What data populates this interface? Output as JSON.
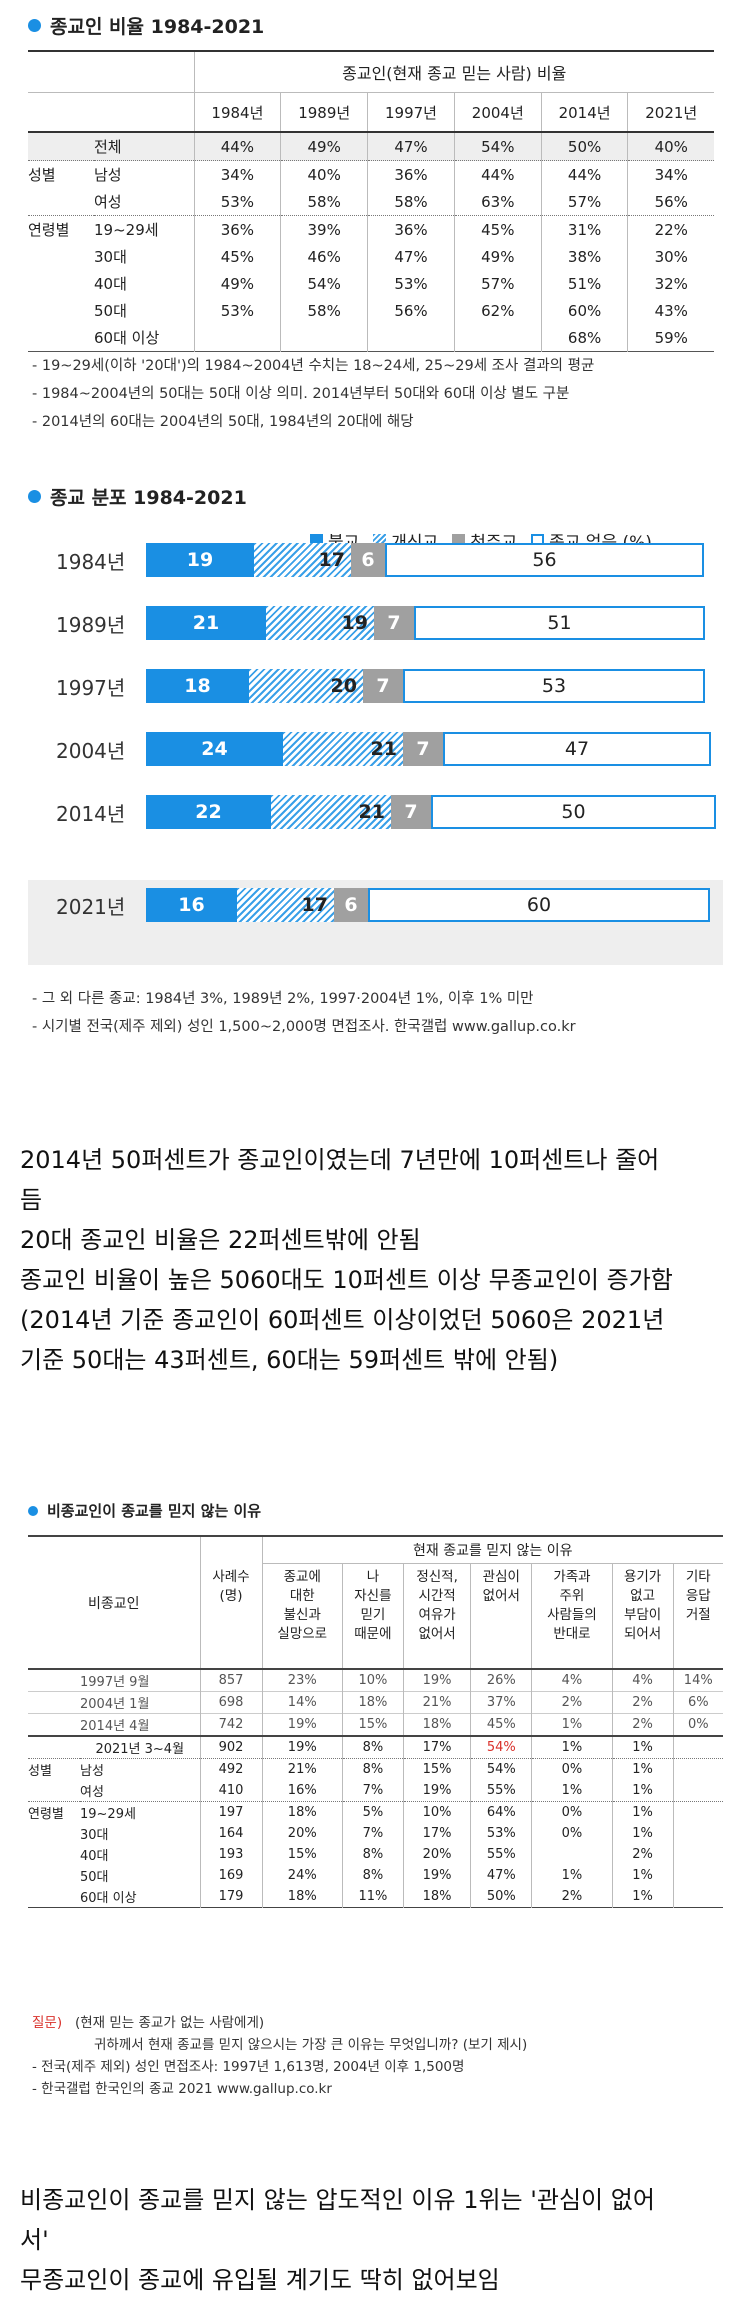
{
  "section1": {
    "title": "종교인 비율 1984-2021",
    "header": "종교인(현재 종교 믿는 사람) 비율",
    "years": [
      "1984년",
      "1989년",
      "1997년",
      "2004년",
      "2014년",
      "2021년"
    ],
    "rows": [
      {
        "group": "",
        "label": "전체",
        "values": [
          "44%",
          "49%",
          "47%",
          "54%",
          "50%",
          "40%"
        ]
      },
      {
        "group": "성별",
        "label": "남성",
        "values": [
          "34%",
          "40%",
          "36%",
          "44%",
          "44%",
          "34%"
        ]
      },
      {
        "group": "",
        "label": "여성",
        "values": [
          "53%",
          "58%",
          "58%",
          "63%",
          "57%",
          "56%"
        ]
      },
      {
        "group": "연령별",
        "label": "19~29세",
        "values": [
          "36%",
          "39%",
          "36%",
          "45%",
          "31%",
          "22%"
        ]
      },
      {
        "group": "",
        "label": "30대",
        "values": [
          "45%",
          "46%",
          "47%",
          "49%",
          "38%",
          "30%"
        ]
      },
      {
        "group": "",
        "label": "40대",
        "values": [
          "49%",
          "54%",
          "53%",
          "57%",
          "51%",
          "32%"
        ]
      },
      {
        "group": "",
        "label": "50대",
        "values": [
          "53%",
          "58%",
          "56%",
          "62%",
          "60%",
          "43%"
        ]
      },
      {
        "group": "",
        "label": "60대 이상",
        "values": [
          "",
          "",
          "",
          "",
          "68%",
          "59%"
        ]
      }
    ],
    "notes": [
      "- 19~29세(이하 '20대')의 1984~2004년 수치는 18~24세, 25~29세 조사 결과의 평균",
      "- 1984~2004년의 50대는 50대 이상 의미. 2014년부터 50대와 60대 이상 별도 구분",
      "- 2014년의 60대는 2004년의 50대, 1984년의 20대에 해당"
    ]
  },
  "section2": {
    "title": "종교 분포 1984-2021",
    "legend": [
      "불교",
      "개신교",
      "천주교",
      "종교 없음 (%)"
    ],
    "notes": [
      "- 그 외 다른 종교: 1984년 3%, 1989년 2%, 1997·2004년 1%, 이후 1% 미만",
      "- 시기별 전국(제주 제외) 성인 1,500~2,000명 면접조사. 한국갤럽 www.gallup.co.kr"
    ]
  },
  "chart_data": {
    "type": "bar",
    "stacked": true,
    "orientation": "horizontal",
    "categories": [
      "1984년",
      "1989년",
      "1997년",
      "2004년",
      "2014년",
      "2021년"
    ],
    "series": [
      {
        "name": "불교",
        "values": [
          19,
          21,
          18,
          24,
          22,
          16
        ]
      },
      {
        "name": "개신교",
        "values": [
          17,
          19,
          20,
          21,
          21,
          17
        ]
      },
      {
        "name": "천주교",
        "values": [
          6,
          7,
          7,
          7,
          7,
          6
        ]
      },
      {
        "name": "종교 없음 (%)",
        "values": [
          56,
          51,
          53,
          47,
          50,
          60
        ]
      }
    ],
    "colors": {
      "불교": "#1a8fe3",
      "개신교": "#3aa0e8",
      "천주교": "#a0a0a0",
      "종교 없음 (%)": "#ffffff"
    }
  },
  "paragraph1": [
    "2014년 50퍼센트가 종교인이였는데 7년만에 10퍼센트나 줄어",
    "듬",
    "20대 종교인 비율은 22퍼센트밖에 안됨",
    "종교인 비율이 높은 5060대도 10퍼센트 이상 무종교인이 증가함",
    "(2014년 기준 종교인이 60퍼센트 이상이었던 5060은 2021년",
    "기준 50대는 43퍼센트, 60대는 59퍼센트 밖에 안됨)"
  ],
  "section3": {
    "title": "비종교인이 종교를 믿지 않는 이유",
    "col_group": "현재 종교를 믿지 않는 이유",
    "corner": "비종교인",
    "columns": [
      "사례수\n(명)",
      "종교에\n대한\n불신과\n실망으로",
      "나\n자신를\n믿기\n때문에",
      "정신적,\n시간적\n여유가\n없어서",
      "관심이\n없어서",
      "가족과\n주위\n사람들의\n반대로",
      "용기가\n없고\n부담이\n되어서",
      "기타\n응답\n거절"
    ],
    "rows": [
      {
        "group": "",
        "label": "1997년 9월",
        "values": [
          "857",
          "23%",
          "10%",
          "19%",
          "26%",
          "4%",
          "4%",
          "14%"
        ],
        "style": "gray"
      },
      {
        "group": "",
        "label": "2004년 1월",
        "values": [
          "698",
          "14%",
          "18%",
          "21%",
          "37%",
          "2%",
          "2%",
          "6%"
        ],
        "style": "gray"
      },
      {
        "group": "",
        "label": "2014년 4월",
        "values": [
          "742",
          "19%",
          "15%",
          "18%",
          "45%",
          "1%",
          "2%",
          "0%"
        ],
        "style": "gray"
      },
      {
        "group": "",
        "label": "2021년 3~4월",
        "values": [
          "902",
          "19%",
          "8%",
          "17%",
          "54%",
          "1%",
          "1%",
          ""
        ],
        "style": "bold"
      },
      {
        "group": "성별",
        "label": "남성",
        "values": [
          "492",
          "21%",
          "8%",
          "15%",
          "54%",
          "0%",
          "1%",
          ""
        ],
        "style": ""
      },
      {
        "group": "",
        "label": "여성",
        "values": [
          "410",
          "16%",
          "7%",
          "19%",
          "55%",
          "1%",
          "1%",
          ""
        ],
        "style": ""
      },
      {
        "group": "연령별",
        "label": "19~29세",
        "values": [
          "197",
          "18%",
          "5%",
          "10%",
          "64%",
          "0%",
          "1%",
          ""
        ],
        "style": ""
      },
      {
        "group": "",
        "label": "30대",
        "values": [
          "164",
          "20%",
          "7%",
          "17%",
          "53%",
          "0%",
          "1%",
          ""
        ],
        "style": ""
      },
      {
        "group": "",
        "label": "40대",
        "values": [
          "193",
          "15%",
          "8%",
          "20%",
          "55%",
          "",
          "2%",
          ""
        ],
        "style": ""
      },
      {
        "group": "",
        "label": "50대",
        "values": [
          "169",
          "24%",
          "8%",
          "19%",
          "47%",
          "1%",
          "1%",
          ""
        ],
        "style": ""
      },
      {
        "group": "",
        "label": "60대 이상",
        "values": [
          "179",
          "18%",
          "11%",
          "18%",
          "50%",
          "2%",
          "1%",
          ""
        ],
        "style": ""
      }
    ],
    "question_label": "질문)",
    "question": "(현재 믿는 종교가 없는 사람에게)",
    "question2": "귀하께서 현재 종교를 믿지 않으시는 가장 큰 이유는 무엇입니까? (보기 제시)",
    "notes": [
      "- 전국(제주 제외) 성인 면접조사: 1997년 1,613명, 2004년 이후 1,500명",
      "- 한국갤럽 한국인의 종교 2021 www.gallup.co.kr"
    ]
  },
  "paragraph2": [
    "비종교인이 종교를 믿지 않는 압도적인 이유 1위는 '관심이 없어",
    "서'",
    "무종교인이 종교에 유입될 계기도 딱히 없어보임"
  ]
}
